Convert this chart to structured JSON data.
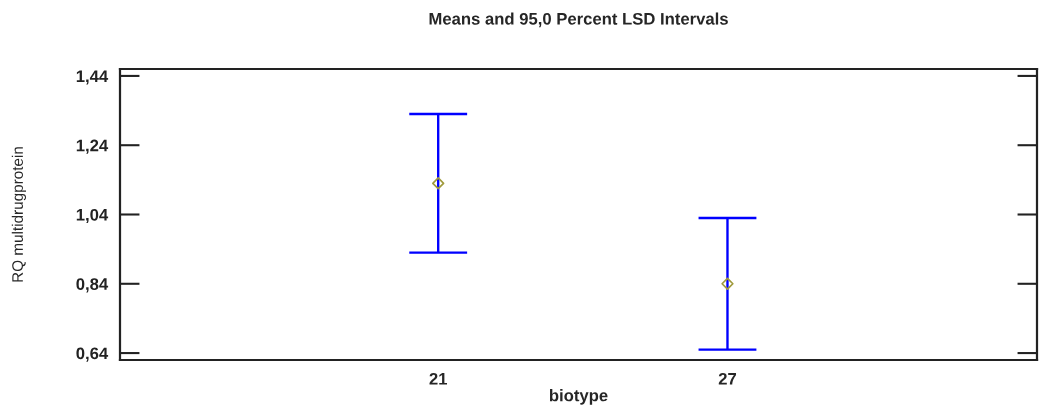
{
  "chart_data": {
    "type": "scatter",
    "title": "Means and 95,0 Percent LSD Intervals",
    "xlabel": "biotype",
    "ylabel": "RQ multidrugprotein",
    "categories": [
      "21",
      "27"
    ],
    "series": [
      {
        "color": "#0000ff",
        "colors": [
          "#a09a3c",
          "#a09a3c"
        ],
        "values": [
          1.13,
          0.84
        ],
        "errors": [
          0.2,
          0.19
        ]
      }
    ],
    "ylim": [
      0.62,
      1.46
    ],
    "yticks": [
      {
        "value": 0.64,
        "label": "0,64"
      },
      {
        "value": 0.84,
        "label": "0,84"
      },
      {
        "value": 1.04,
        "label": "1,04"
      },
      {
        "value": 1.24,
        "label": "1,24"
      },
      {
        "value": 1.44,
        "label": "1,44"
      }
    ],
    "marker": "diamond"
  }
}
